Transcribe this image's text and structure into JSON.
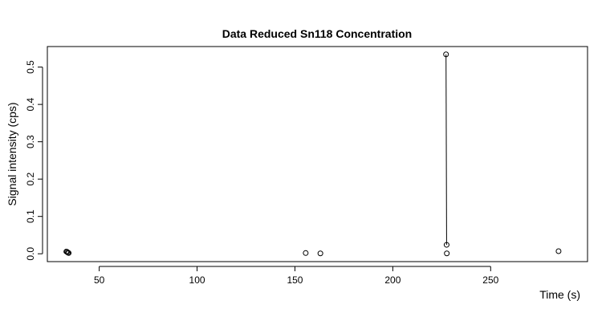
{
  "chart_data": {
    "type": "scatter",
    "title": "Data Reduced Sn118 Concentration",
    "xlabel": "Time (s)",
    "ylabel": "Signal intensity (cps)",
    "xlim": [
      23.5,
      299.5
    ],
    "ylim": [
      -0.021,
      0.555
    ],
    "grid": false,
    "legend": "none",
    "x_ticks": [
      50,
      100,
      150,
      200,
      250
    ],
    "x_tick_labels": [
      "50",
      "100",
      "150",
      "200",
      "250"
    ],
    "y_ticks": [
      0.0,
      0.1,
      0.2,
      0.3,
      0.4,
      0.5
    ],
    "y_tick_labels": [
      "0.0",
      "0.1",
      "0.2",
      "0.3",
      "0.4",
      "0.5"
    ],
    "points": [
      {
        "x": 33.2,
        "y": 0.006
      },
      {
        "x": 33.6,
        "y": 0.005
      },
      {
        "x": 34.0,
        "y": 0.003
      },
      {
        "x": 34.4,
        "y": 0.002
      },
      {
        "x": 155.5,
        "y": 0.002
      },
      {
        "x": 163.0,
        "y": 0.001
      },
      {
        "x": 227.2,
        "y": 0.534
      },
      {
        "x": 227.5,
        "y": 0.024
      },
      {
        "x": 227.6,
        "y": 0.001
      },
      {
        "x": 284.7,
        "y": 0.007
      }
    ],
    "segments": [
      {
        "x1": 227.2,
        "y1": 0.534,
        "x2": 227.5,
        "y2": 0.024
      }
    ],
    "colors": {
      "stroke": "#000000",
      "background": "#ffffff"
    }
  }
}
